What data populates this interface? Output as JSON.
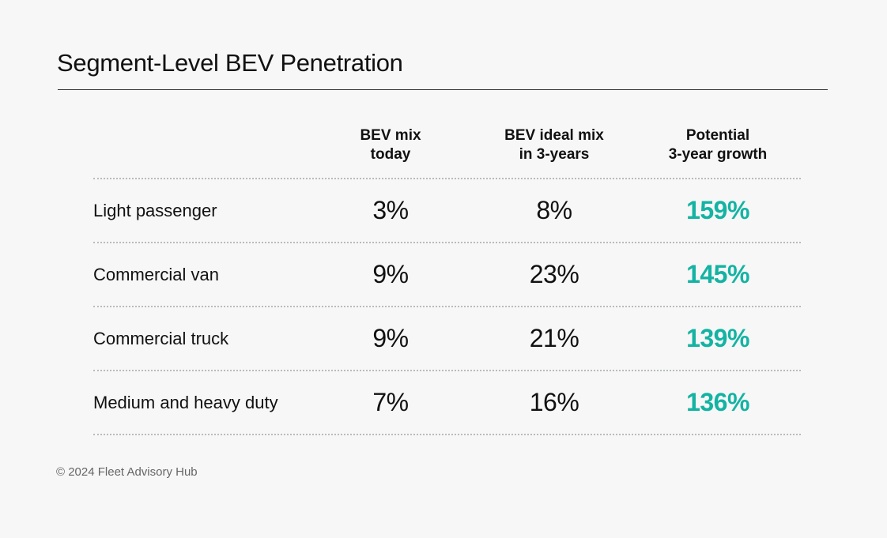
{
  "title": "Segment-Level BEV Penetration",
  "footer": "© 2024 Fleet Advisory Hub",
  "colors": {
    "accent": "#14b3a3",
    "text": "#111111",
    "background": "#f6f7f6"
  },
  "chart_data": {
    "type": "table",
    "title": "Segment-Level BEV Penetration",
    "columns": [
      {
        "line1": "BEV mix",
        "line2": "today"
      },
      {
        "line1": "BEV ideal mix",
        "line2": "in 3-years"
      },
      {
        "line1": "Potential",
        "line2": "3-year growth"
      }
    ],
    "rows": [
      {
        "label": "Light passenger",
        "today": "3%",
        "ideal": "8%",
        "growth": "159%"
      },
      {
        "label": "Commercial van",
        "today": "9%",
        "ideal": "23%",
        "growth": "145%"
      },
      {
        "label": "Commercial truck",
        "today": "9%",
        "ideal": "21%",
        "growth": "139%"
      },
      {
        "label": "Medium and heavy duty",
        "today": "7%",
        "ideal": "16%",
        "growth": "136%"
      }
    ]
  }
}
